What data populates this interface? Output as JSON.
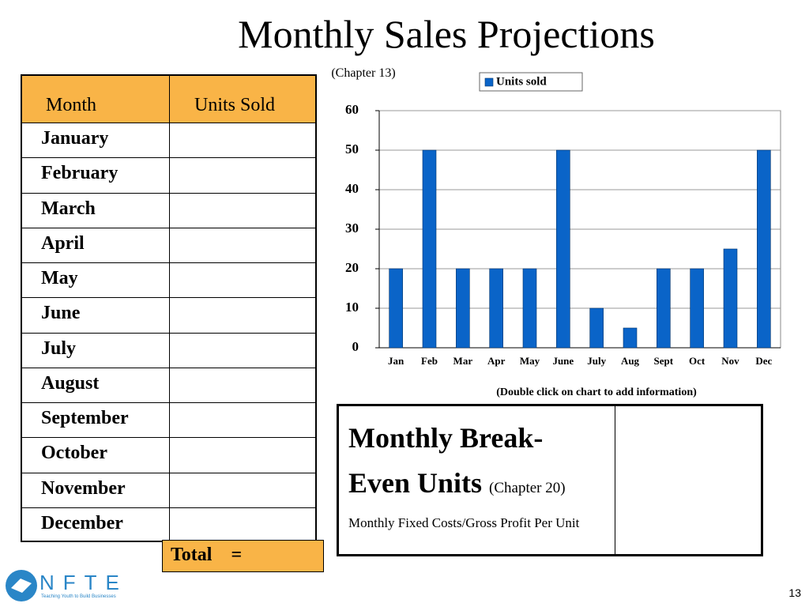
{
  "title": "Monthly Sales Projections",
  "subtitle": "(Chapter 13)",
  "table": {
    "header": [
      "Month",
      "Units Sold"
    ],
    "rows": [
      "January",
      "February",
      "March",
      "April",
      "May",
      "June",
      "July",
      "August",
      "September",
      "October",
      "November",
      "December"
    ],
    "total": "Total    ="
  },
  "chart_note": "(Double click on chart to add information)",
  "chart_data": {
    "type": "bar",
    "categories": [
      "Jan",
      "Feb",
      "Mar",
      "Apr",
      "May",
      "June",
      "July",
      "Aug",
      "Sept",
      "Oct",
      "Nov",
      "Dec"
    ],
    "series": [
      {
        "name": "Units sold",
        "color": "#0a64c8",
        "values": [
          20,
          50,
          20,
          20,
          20,
          50,
          10,
          5,
          20,
          20,
          25,
          50
        ]
      }
    ],
    "ylim": [
      0,
      60
    ],
    "yticks": [
      0,
      10,
      20,
      30,
      40,
      50,
      60
    ],
    "grid": true,
    "legend": "top"
  },
  "break_even": {
    "title": "Monthly Break-Even Units",
    "chapter": "(Chapter 20)",
    "formula": "Monthly Fixed Costs/Gross Profit Per Unit"
  },
  "logo": {
    "name": "NFTE",
    "tagline": "Teaching Youth to Build Businesses"
  },
  "page_number": "13"
}
